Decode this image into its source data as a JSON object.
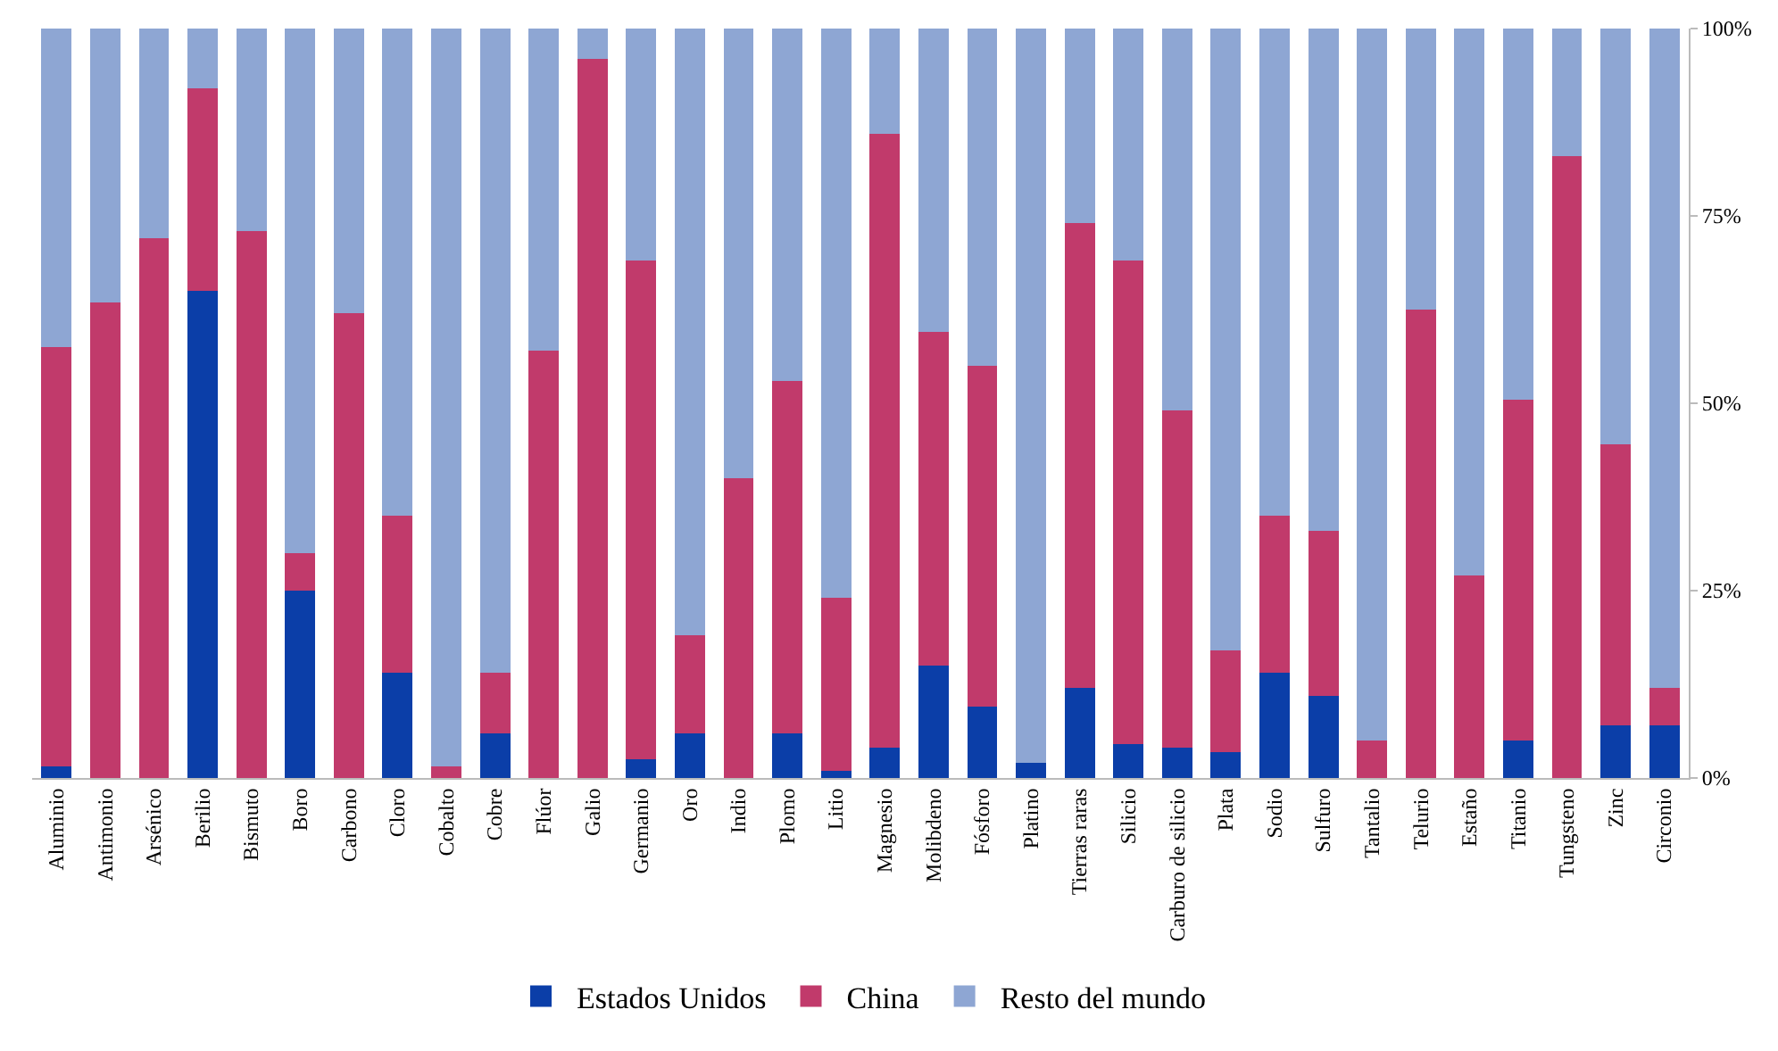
{
  "chart_data": {
    "type": "bar",
    "stacked": true,
    "categories": [
      "Aluminio",
      "Antimonio",
      "Arsénico",
      "Berilio",
      "Bismuto",
      "Boro",
      "Carbono",
      "Cloro",
      "Cobalto",
      "Cobre",
      "Flúor",
      "Galio",
      "Germanio",
      "Oro",
      "Indio",
      "Plomo",
      "Litio",
      "Magnesio",
      "Molibdeno",
      "Fósforo",
      "Platino",
      "Tierras raras",
      "Silicio",
      "Carburo de silicio",
      "Plata",
      "Sodio",
      "Sulfuro",
      "Tantalio",
      "Telurio",
      "Estaño",
      "Titanio",
      "Tungsteno",
      "Zinc",
      "Circonio"
    ],
    "series": [
      {
        "name": "Estados Unidos",
        "color": "#0b3ea8",
        "values": [
          1.5,
          0,
          0,
          65,
          0,
          25,
          0,
          14,
          0,
          6,
          0,
          0,
          2.5,
          6,
          0,
          6,
          1,
          4,
          15,
          9.5,
          2,
          12,
          4.5,
          4,
          3.5,
          14,
          11,
          0,
          0,
          0,
          5,
          0,
          7,
          7
        ]
      },
      {
        "name": "China",
        "color": "#c13a6b",
        "values": [
          56,
          63.5,
          72,
          27,
          73,
          5,
          62,
          21,
          1.5,
          8,
          57,
          96,
          66.5,
          13,
          40,
          47,
          23,
          82,
          44.5,
          45.5,
          0,
          62,
          64.5,
          45,
          13.5,
          21,
          22,
          5,
          62.5,
          27,
          45.5,
          83,
          37.5,
          5
        ]
      },
      {
        "name": "Resto del mundo",
        "color": "#8ea6d3",
        "values": [
          42.5,
          36.5,
          28,
          8,
          27,
          70,
          38,
          65,
          98.5,
          86,
          43,
          4,
          31,
          81,
          60,
          47,
          76,
          14,
          40.5,
          45,
          98,
          26,
          31,
          51,
          83,
          65,
          67,
          95,
          37.5,
          73,
          49.5,
          17,
          55.5,
          88
        ]
      }
    ],
    "ylim": [
      0,
      100
    ],
    "yticks": [
      {
        "value": 0,
        "label": "0%"
      },
      {
        "value": 25,
        "label": "25%"
      },
      {
        "value": 50,
        "label": "50%"
      },
      {
        "value": 75,
        "label": "75%"
      },
      {
        "value": 100,
        "label": "100%"
      }
    ],
    "grid": false,
    "legend": "bottom"
  }
}
